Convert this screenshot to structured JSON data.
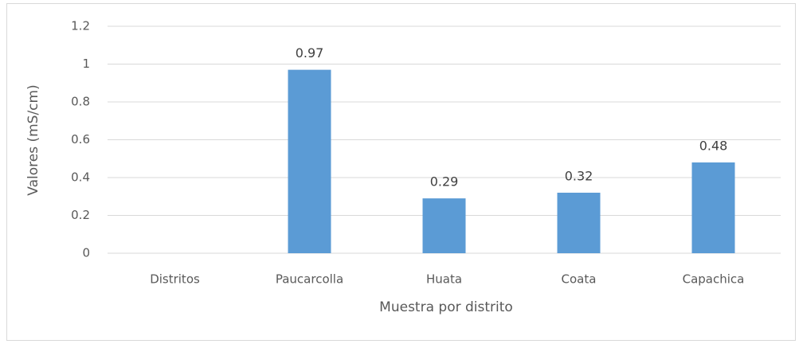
{
  "chart_data": {
    "type": "bar",
    "categories": [
      "Distritos",
      "Paucarcolla",
      "Huata",
      "Coata",
      "Capachica"
    ],
    "values": [
      null,
      0.97,
      0.29,
      0.32,
      0.48
    ],
    "color": "#5b9bd5",
    "ylim": [
      0,
      1.2
    ],
    "yticks": [
      0,
      0.2,
      0.4,
      0.6,
      0.8,
      1,
      1.2
    ],
    "grid": true,
    "xlabel": "Muestra por distrito",
    "ylabel": "Valores (mS/cm)"
  }
}
